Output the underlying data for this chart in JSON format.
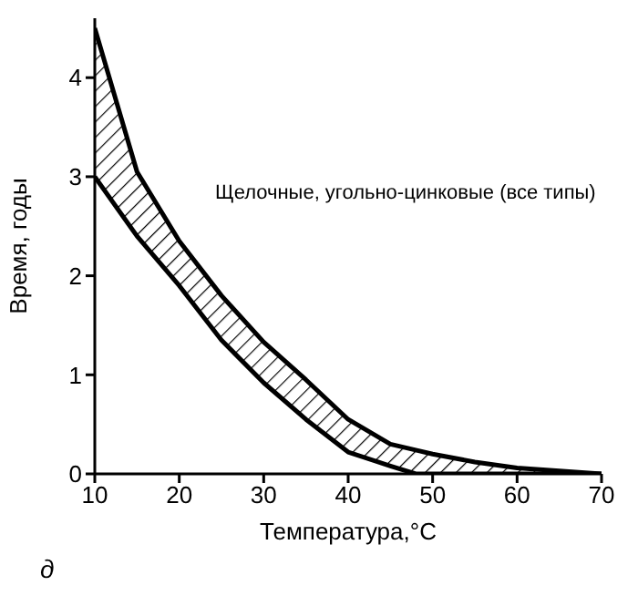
{
  "chart_data": {
    "type": "line",
    "xlabel": "Температура,°C",
    "ylabel": "Время, годы",
    "x": [
      10,
      15,
      20,
      25,
      30,
      35,
      40,
      45,
      48,
      50,
      55,
      60,
      65,
      70
    ],
    "series": [
      {
        "color": "#000000",
        "values": [
          4.5,
          3.05,
          2.35,
          1.8,
          1.33,
          0.95,
          0.55,
          0.3,
          0.24,
          0.2,
          0.12,
          0.06,
          0.03,
          0
        ],
        "lower": [
          3.0,
          2.4,
          1.9,
          1.35,
          0.92,
          0.55,
          0.22,
          0.08,
          0,
          0,
          0,
          0,
          0,
          0
        ],
        "upper": [
          4.5,
          3.05,
          2.35,
          1.8,
          1.33,
          0.95,
          0.55,
          0.3,
          0.24,
          0.2,
          0.12,
          0.06,
          0.03,
          0
        ]
      },
      {
        "color": "#000000",
        "values": [
          3.0,
          2.4,
          1.9,
          1.35,
          0.92,
          0.55,
          0.22,
          0.08,
          0,
          0,
          0,
          0,
          0,
          0
        ]
      }
    ],
    "xlim": [
      10,
      70
    ],
    "xticks": [
      10,
      20,
      30,
      40,
      50,
      60,
      70
    ],
    "ylim": [
      0,
      4.6
    ],
    "yticks": [
      0,
      1,
      2,
      3,
      4
    ],
    "grid": false,
    "legend": false,
    "marker": "none",
    "line_style": "solid",
    "annotations": [
      "Щелочные, угольно-цинковые (все типы)",
      "д"
    ]
  }
}
